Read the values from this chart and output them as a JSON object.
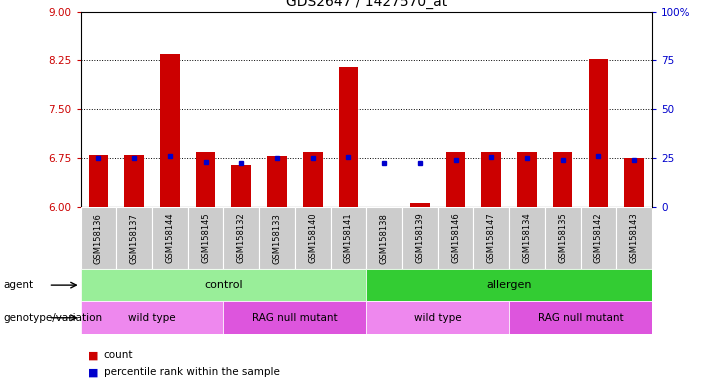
{
  "title": "GDS2647 / 1427570_at",
  "samples": [
    "GSM158136",
    "GSM158137",
    "GSM158144",
    "GSM158145",
    "GSM158132",
    "GSM158133",
    "GSM158140",
    "GSM158141",
    "GSM158138",
    "GSM158139",
    "GSM158146",
    "GSM158147",
    "GSM158134",
    "GSM158135",
    "GSM158142",
    "GSM158143"
  ],
  "count_values": [
    6.8,
    6.8,
    8.35,
    6.85,
    6.65,
    6.78,
    6.85,
    8.15,
    6.01,
    6.07,
    6.85,
    6.85,
    6.85,
    6.85,
    8.28,
    6.75
  ],
  "percentile_values": [
    6.75,
    6.75,
    6.78,
    6.7,
    6.68,
    6.75,
    6.75,
    6.77,
    6.68,
    6.68,
    6.72,
    6.77,
    6.76,
    6.72,
    6.78,
    6.72
  ],
  "ymin": 6.0,
  "ymax": 9.0,
  "y2min": 0,
  "y2max": 100,
  "yticks": [
    6,
    6.75,
    7.5,
    8.25,
    9
  ],
  "y2ticks": [
    0,
    25,
    50,
    75,
    100
  ],
  "gridlines": [
    6.75,
    7.5,
    8.25
  ],
  "bar_color": "#CC0000",
  "dot_color": "#0000CC",
  "bar_width": 0.55,
  "agent_labels": [
    {
      "text": "control",
      "start": 0,
      "end": 8,
      "color": "#99EE99"
    },
    {
      "text": "allergen",
      "start": 8,
      "end": 16,
      "color": "#33CC33"
    }
  ],
  "genotype_labels": [
    {
      "text": "wild type",
      "start": 0,
      "end": 4,
      "color": "#EE88EE"
    },
    {
      "text": "RAG null mutant",
      "start": 4,
      "end": 8,
      "color": "#DD55DD"
    },
    {
      "text": "wild type",
      "start": 8,
      "end": 12,
      "color": "#EE88EE"
    },
    {
      "text": "RAG null mutant",
      "start": 12,
      "end": 16,
      "color": "#DD55DD"
    }
  ],
  "agent_row_label": "agent",
  "genotype_row_label": "genotype/variation",
  "legend_count": "count",
  "legend_percentile": "percentile rank within the sample",
  "tick_color_left": "#CC0000",
  "tick_color_right": "#0000CC"
}
